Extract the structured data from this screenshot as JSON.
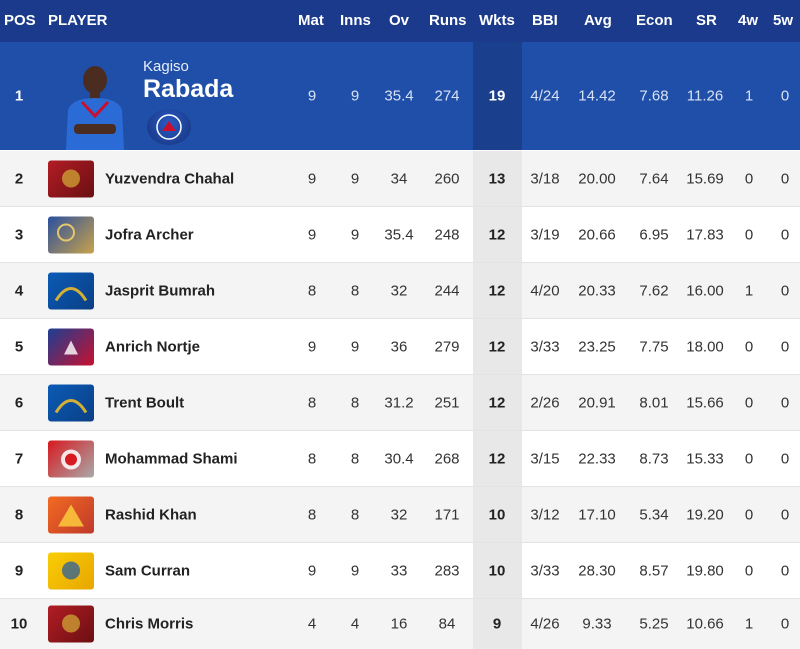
{
  "header": {
    "pos": "POS",
    "player": "PLAYER",
    "mat": "Mat",
    "inns": "Inns",
    "ov": "Ov",
    "runs": "Runs",
    "wkts": "Wkts",
    "bbi": "BBI",
    "avg": "Avg",
    "econ": "Econ",
    "sr": "SR",
    "w4": "4w",
    "w5": "5w"
  },
  "leader": {
    "pos": "1",
    "first_name": "Kagiso",
    "last_name": "Rabada",
    "team_logo": "dc-logo-icon",
    "mat": "9",
    "inns": "9",
    "ov": "35.4",
    "runs": "274",
    "wkts": "19",
    "bbi": "4/24",
    "avg": "14.42",
    "econ": "7.68",
    "sr": "11.26",
    "w4": "1",
    "w5": "0"
  },
  "rows": [
    {
      "pos": "2",
      "name": "Yuzvendra Chahal",
      "team_logo": "rcb-logo-icon",
      "mat": "9",
      "inns": "9",
      "ov": "34",
      "runs": "260",
      "wkts": "13",
      "bbi": "3/18",
      "avg": "20.00",
      "econ": "7.64",
      "sr": "15.69",
      "w4": "0",
      "w5": "0"
    },
    {
      "pos": "3",
      "name": "Jofra Archer",
      "team_logo": "rr-logo-icon",
      "mat": "9",
      "inns": "9",
      "ov": "35.4",
      "runs": "248",
      "wkts": "12",
      "bbi": "3/19",
      "avg": "20.66",
      "econ": "6.95",
      "sr": "17.83",
      "w4": "0",
      "w5": "0"
    },
    {
      "pos": "4",
      "name": "Jasprit Bumrah",
      "team_logo": "mi-logo-icon",
      "mat": "8",
      "inns": "8",
      "ov": "32",
      "runs": "244",
      "wkts": "12",
      "bbi": "4/20",
      "avg": "20.33",
      "econ": "7.62",
      "sr": "16.00",
      "w4": "1",
      "w5": "0"
    },
    {
      "pos": "5",
      "name": "Anrich Nortje",
      "team_logo": "dc-logo-icon",
      "mat": "9",
      "inns": "9",
      "ov": "36",
      "runs": "279",
      "wkts": "12",
      "bbi": "3/33",
      "avg": "23.25",
      "econ": "7.75",
      "sr": "18.00",
      "w4": "0",
      "w5": "0"
    },
    {
      "pos": "6",
      "name": "Trent Boult",
      "team_logo": "mi-logo-icon",
      "mat": "8",
      "inns": "8",
      "ov": "31.2",
      "runs": "251",
      "wkts": "12",
      "bbi": "2/26",
      "avg": "20.91",
      "econ": "8.01",
      "sr": "15.66",
      "w4": "0",
      "w5": "0"
    },
    {
      "pos": "7",
      "name": "Mohammad Shami",
      "team_logo": "kxip-logo-icon",
      "mat": "8",
      "inns": "8",
      "ov": "30.4",
      "runs": "268",
      "wkts": "12",
      "bbi": "3/15",
      "avg": "22.33",
      "econ": "8.73",
      "sr": "15.33",
      "w4": "0",
      "w5": "0"
    },
    {
      "pos": "8",
      "name": "Rashid Khan",
      "team_logo": "srh-logo-icon",
      "mat": "8",
      "inns": "8",
      "ov": "32",
      "runs": "171",
      "wkts": "10",
      "bbi": "3/12",
      "avg": "17.10",
      "econ": "5.34",
      "sr": "19.20",
      "w4": "0",
      "w5": "0"
    },
    {
      "pos": "9",
      "name": "Sam Curran",
      "team_logo": "csk-logo-icon",
      "mat": "9",
      "inns": "9",
      "ov": "33",
      "runs": "283",
      "wkts": "10",
      "bbi": "3/33",
      "avg": "28.30",
      "econ": "8.57",
      "sr": "19.80",
      "w4": "0",
      "w5": "0"
    },
    {
      "pos": "10",
      "name": "Chris Morris",
      "team_logo": "rcb-logo-icon",
      "mat": "4",
      "inns": "4",
      "ov": "16",
      "runs": "84",
      "wkts": "9",
      "bbi": "4/26",
      "avg": "9.33",
      "econ": "5.25",
      "sr": "10.66",
      "w4": "1",
      "w5": "0"
    }
  ],
  "colors": {
    "header_bg": "#1b3a8c",
    "leader_bg": "#1f4fa8",
    "wkts_col": "#e8e8e8"
  }
}
